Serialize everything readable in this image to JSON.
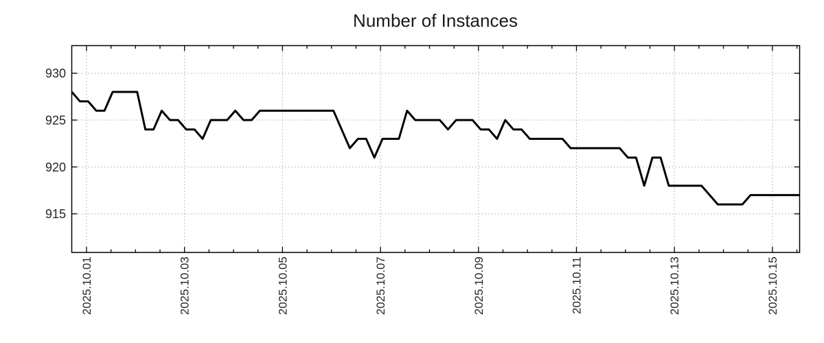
{
  "chart_data": {
    "type": "line",
    "title": "Number of Instances",
    "x_axis": {
      "tick_labels": [
        "2025.10.01",
        "2025.10.03",
        "2025.10.05",
        "2025.10.07",
        "2025.10.09",
        "2025.10.11",
        "2025.10.13",
        "2025.10.15"
      ],
      "major_tick_days": [
        0,
        2,
        4,
        6,
        8,
        10,
        12,
        14
      ],
      "minor_tick_step_days": 0.5,
      "visible_day_range": [
        -0.3,
        14.56
      ],
      "label_rotation_deg": -90,
      "note": "time axis; one data sample every 4 hours (6 samples per day)"
    },
    "y_axis": {
      "tick_values": [
        930,
        925,
        920,
        915
      ],
      "tick_labels": [
        "930",
        "925",
        "920",
        "915"
      ],
      "min": 911,
      "max": 932.9
    },
    "grid": {
      "show": true,
      "style": "dotted",
      "color": "#a6a6a6"
    },
    "legend": {
      "show": false
    },
    "series": [
      {
        "name": "Number of Instances",
        "color": "#000000",
        "line_width": 3,
        "values": [
          928,
          927,
          927,
          926,
          926,
          928,
          928,
          928,
          928,
          924,
          924,
          926,
          925,
          925,
          924,
          924,
          923,
          925,
          925,
          925,
          926,
          925,
          925,
          926,
          926,
          926,
          926,
          926,
          926,
          926,
          926,
          926,
          926,
          924,
          922,
          923,
          923,
          921,
          923,
          923,
          923,
          926,
          925,
          925,
          925,
          925,
          924,
          925,
          925,
          925,
          924,
          924,
          923,
          925,
          924,
          924,
          923,
          923,
          923,
          923,
          923,
          922,
          922,
          922,
          922,
          922,
          922,
          922,
          921,
          921,
          918,
          921,
          921,
          918,
          918,
          918,
          918,
          918,
          917,
          916,
          916,
          916,
          916,
          917,
          917,
          917,
          917,
          917,
          917,
          917
        ]
      }
    ]
  },
  "style": {
    "background": "#ffffff",
    "text_color": "#262626",
    "title_color": "#1a1a1a",
    "axis_color": "#000000"
  }
}
